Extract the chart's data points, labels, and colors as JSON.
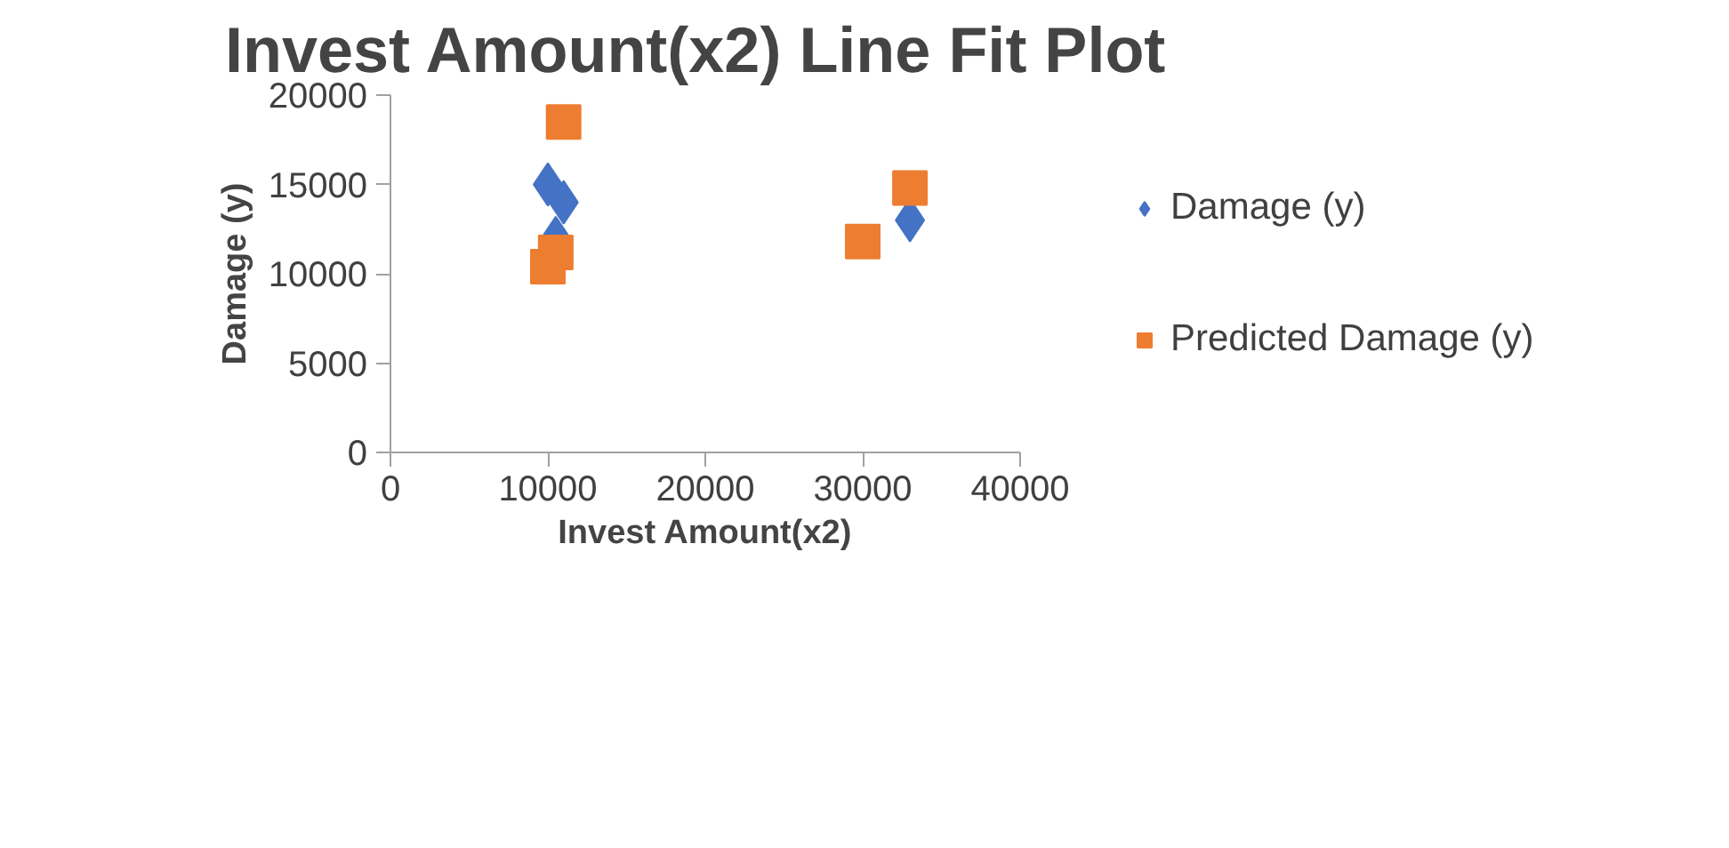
{
  "chart_data": {
    "type": "scatter",
    "title": "Invest Amount(x2) Line Fit  Plot",
    "xlabel": "Invest Amount(x2)",
    "ylabel": "Damage (y)",
    "series": [
      {
        "name": "Damage (y)",
        "color": "#4472c4",
        "marker": "diamond",
        "x": [
          10000,
          11000,
          10500,
          30000,
          33000
        ],
        "values": [
          15000,
          14000,
          12000,
          null,
          13000
        ]
      },
      {
        "name": "Predicted Damage (y)",
        "color": "#ed7d31",
        "marker": "square",
        "x": [
          11000,
          10000,
          10500,
          30000,
          33000
        ],
        "values": [
          18500,
          10400,
          11200,
          11800,
          14800
        ]
      }
    ],
    "xlim": [
      0,
      40000
    ],
    "xticks": [
      0,
      10000,
      20000,
      30000,
      40000
    ],
    "ylim": [
      0,
      20000
    ],
    "yticks": [
      0,
      5000,
      10000,
      15000,
      20000
    ],
    "grid": false,
    "legend": "right"
  }
}
